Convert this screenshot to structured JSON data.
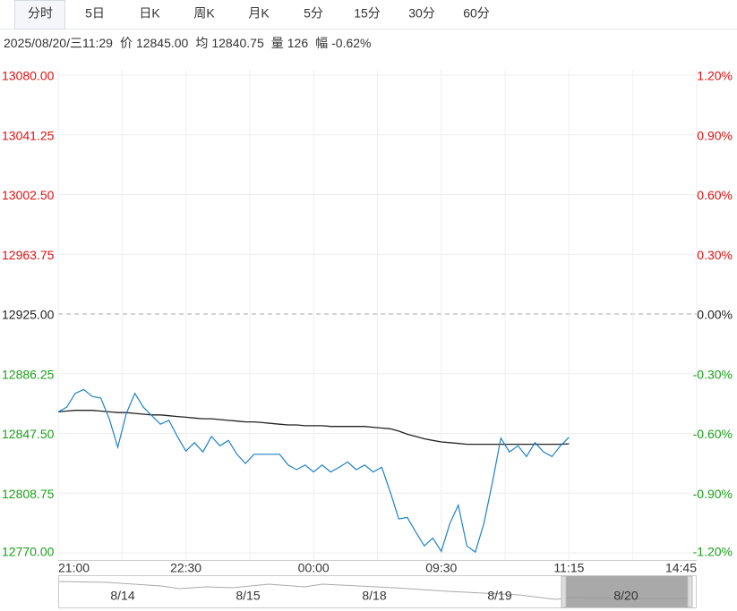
{
  "tabs": [
    "分时",
    "5日",
    "日K",
    "周K",
    "月K",
    "5分",
    "15分",
    "30分",
    "60分"
  ],
  "info": {
    "datetime": "2025/08/20/三11:29",
    "items": [
      {
        "label": "价",
        "value": "12845.00"
      },
      {
        "label": "均",
        "value": "12840.75"
      },
      {
        "label": "量",
        "value": "126"
      },
      {
        "label": "幅",
        "value": "-0.62%"
      }
    ]
  },
  "chart_data": {
    "type": "line",
    "x": [
      0,
      6,
      12,
      18,
      24,
      30,
      36,
      42,
      48,
      54,
      60,
      66,
      72,
      78,
      84,
      90,
      96,
      102,
      108,
      114,
      120,
      126,
      132,
      138,
      144,
      150,
      156,
      162,
      168,
      174,
      180,
      186,
      192,
      198,
      204,
      210,
      216,
      222,
      228,
      234,
      240,
      246,
      252,
      258,
      264,
      270,
      276,
      282,
      288,
      294,
      300,
      306,
      312,
      318,
      324,
      330,
      336,
      342,
      348,
      354,
      360
    ],
    "series": [
      {
        "color": "#1f82c4",
        "values": [
          12861.5,
          12864.5,
          12873.5,
          12876,
          12871.5,
          12870.5,
          12857,
          12838.5,
          12860.5,
          12873.5,
          12864.5,
          12859,
          12853.5,
          12856,
          12845.5,
          12836,
          12841.5,
          12835.5,
          12845.5,
          12839.5,
          12843,
          12834,
          12828,
          12834,
          12834,
          12834,
          12834,
          12827,
          12824,
          12827,
          12822.5,
          12827,
          12822.5,
          12825.5,
          12829,
          12824,
          12827,
          12822.5,
          12825.5,
          12809.5,
          12792,
          12793,
          12783.5,
          12774.5,
          12779.5,
          12771,
          12789,
          12801,
          12774.5,
          12770.5,
          12789,
          12815.5,
          12844.5,
          12835.5,
          12839.5,
          12832.5,
          12841.5,
          12835.5,
          12832.5,
          12839.5,
          12845
        ]
      },
      {
        "color": "#222222",
        "values": [
          12861.5,
          12862,
          12862.5,
          12862.5,
          12862.5,
          12862,
          12861.5,
          12861,
          12861,
          12860.5,
          12860,
          12859.5,
          12859.5,
          12859,
          12858.5,
          12858,
          12857.5,
          12857,
          12857,
          12856.5,
          12856,
          12855.5,
          12855,
          12855,
          12854.5,
          12854,
          12853.5,
          12853,
          12853,
          12852.5,
          12852.5,
          12852.5,
          12852,
          12852,
          12852,
          12852,
          12852,
          12851.5,
          12851,
          12850.5,
          12849,
          12847,
          12845.5,
          12844,
          12843,
          12842,
          12841.5,
          12841,
          12840.5,
          12840.5,
          12840.5,
          12840.5,
          12840.5,
          12840.5,
          12840.5,
          12840.5,
          12840.5,
          12840.5,
          12840.5,
          12840.5,
          12840.75
        ]
      }
    ],
    "xlim": [
      0,
      450
    ],
    "xticks": [
      {
        "value": 0,
        "label": "21:00"
      },
      {
        "value": 90,
        "label": "22:30"
      },
      {
        "value": 180,
        "label": "00:00"
      },
      {
        "value": 270,
        "label": "09:30"
      },
      {
        "value": 360,
        "label": "11:15"
      },
      {
        "value": 450,
        "label": "14:45"
      }
    ],
    "x_minor_ticks": [
      45,
      135,
      225,
      315,
      405
    ],
    "ylim": [
      12770,
      13080
    ],
    "yticks": [
      {
        "value": 13080,
        "label": "13080.00"
      },
      {
        "value": 13041.25,
        "label": "13041.25"
      },
      {
        "value": 13002.5,
        "label": "13002.50"
      },
      {
        "value": 12963.75,
        "label": "12963.75"
      },
      {
        "value": 12925,
        "label": "12925.00"
      },
      {
        "value": 12886.25,
        "label": "12886.25"
      },
      {
        "value": 12847.5,
        "label": "12847.50"
      },
      {
        "value": 12808.75,
        "label": "12808.75"
      },
      {
        "value": 12770,
        "label": "12770.00"
      }
    ],
    "y2lim": [
      -1.2,
      1.2
    ],
    "y2ticks": [
      {
        "value": 1.2,
        "label": "1.20%"
      },
      {
        "value": 0.9,
        "label": "0.90%"
      },
      {
        "value": 0.6,
        "label": "0.60%"
      },
      {
        "value": 0.3,
        "label": "0.30%"
      },
      {
        "value": 0,
        "label": "0.00%"
      },
      {
        "value": -0.3,
        "label": "-0.30%"
      },
      {
        "value": -0.6,
        "label": "-0.60%"
      },
      {
        "value": -0.9,
        "label": "-0.90%"
      },
      {
        "value": -1.2,
        "label": "-1.20%"
      }
    ],
    "grid": true
  },
  "navigator": {
    "labels": [
      "8/14",
      "8/15",
      "8/18",
      "8/19",
      "8/20"
    ]
  }
}
